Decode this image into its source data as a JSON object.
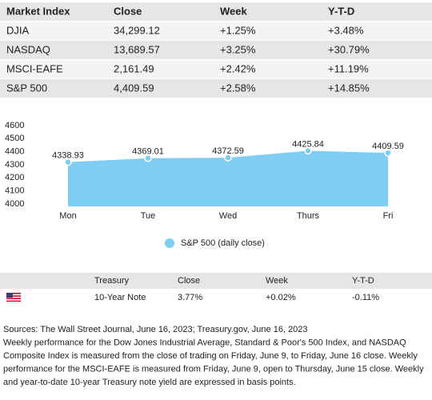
{
  "market_table": {
    "header": [
      "Market Index",
      "Close",
      "Week",
      "Y-T-D"
    ],
    "rows": [
      [
        "DJIA",
        "34,299.12",
        "+1.25%",
        "+3.48%"
      ],
      [
        "NASDAQ",
        "13,689.57",
        "+3.25%",
        "+30.79%"
      ],
      [
        "MSCI-EAFE",
        "2,161.49",
        "+2.42%",
        "+11.19%"
      ],
      [
        "S&P 500",
        "4,409.59",
        "+2.58%",
        "+14.85%"
      ]
    ]
  },
  "chart_data": {
    "type": "area",
    "categories": [
      "Mon",
      "Tue",
      "Wed",
      "Thurs",
      "Fri"
    ],
    "series": [
      {
        "name": "S&P 500 (daily close)",
        "color": "#7fcdf2",
        "values": [
          4338.93,
          4369.01,
          4372.59,
          4425.84,
          4409.59
        ]
      }
    ],
    "ylim": [
      4000,
      4600
    ],
    "yticks": [
      4000,
      4100,
      4200,
      4300,
      4400,
      4500,
      4600
    ],
    "grid": false,
    "legend": "bottom"
  },
  "treasury_table": {
    "header": [
      "Treasury",
      "Close",
      "Week",
      "Y-T-D"
    ],
    "rows": [
      [
        "10-Year Note",
        "3.77%",
        "+0.02%",
        "-0.11%"
      ]
    ]
  },
  "footnote": [
    "Sources: The Wall Street Journal, June 16, 2023; Treasury.gov, June 16, 2023",
    "Weekly performance for the Dow Jones Industrial Average, Standard & Poor's 500 Index, and NASDAQ",
    "Composite Index is measured from the close of trading on Friday, June 9, to Friday, June 16 close. Weekly",
    "performance for the MSCI-EAFE is measured from Friday, June 9, open to Thursday, June 15 close. Weekly",
    "and year-to-date 10-year Treasury note yield are expressed in basis points."
  ]
}
